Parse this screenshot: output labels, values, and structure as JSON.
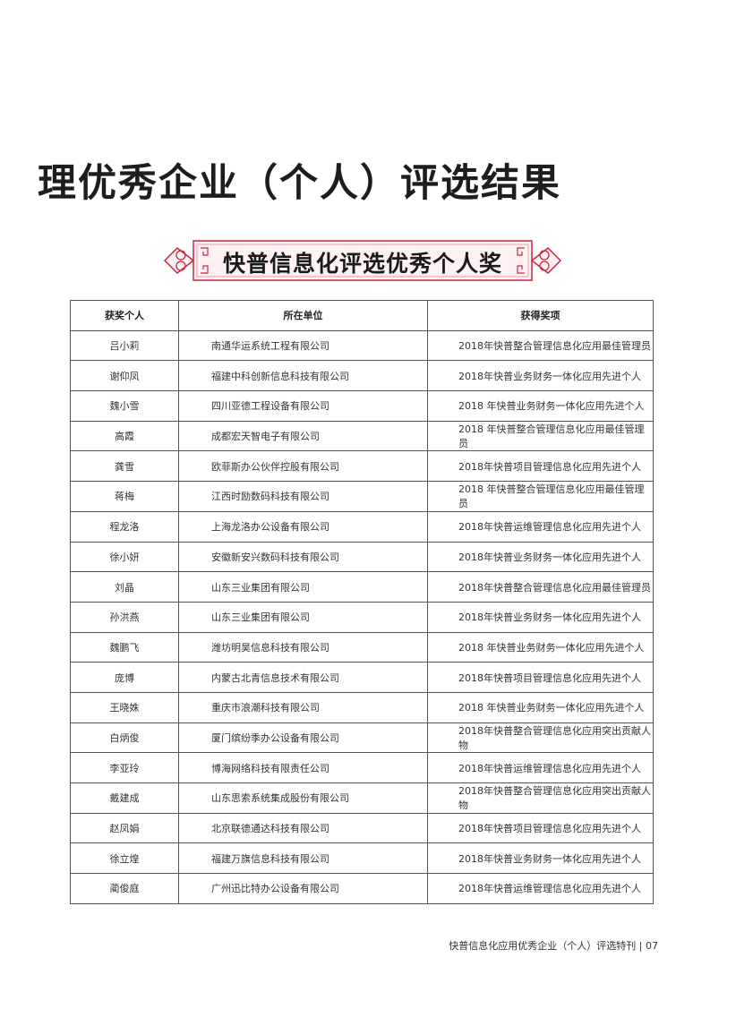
{
  "title": "理优秀企业（个人）评选结果",
  "banner": "快普信息化评选优秀个人奖",
  "colors": {
    "banner_frame": "#c8283a",
    "banner_fill": "#fdf1f3"
  },
  "table": {
    "headers": [
      "获奖个人",
      "所在单位",
      "获得奖项"
    ],
    "rows": [
      [
        "吕小莉",
        "南通华运系统工程有限公司",
        "2018年快普整合管理信息化应用最佳管理员"
      ],
      [
        "谢仰凤",
        "福建中科创新信息科技有限公司",
        "2018年快普业务财务一体化应用先进个人"
      ],
      [
        "魏小雪",
        "四川亚德工程设备有限公司",
        "2018 年快普业务财务一体化应用先进个人"
      ],
      [
        "高霞",
        "成都宏天智电子有限公司",
        "2018 年快普整合管理信息化应用最佳管理员"
      ],
      [
        "龚雪",
        "欧菲斯办公伙伴控股有限公司",
        "2018年快普项目管理信息化应用先进个人"
      ],
      [
        "蒋梅",
        "江西时励数码科技有限公司",
        "2018 年快普整合管理信息化应用最佳管理员"
      ],
      [
        "程龙洛",
        "上海龙洛办公设备有限公司",
        "2018年快普运维管理信息化应用先进个人"
      ],
      [
        "徐小妍",
        "安徽新安兴数码科技有限公司",
        "2018年快普业务财务一体化应用先进个人"
      ],
      [
        "刘晶",
        "山东三业集团有限公司",
        "2018年快普整合管理信息化应用最佳管理员"
      ],
      [
        "孙洪燕",
        "山东三业集团有限公司",
        "2018年快普业务财务一体化应用先进个人"
      ],
      [
        "魏鹏飞",
        "潍坊明昊信息科技有限公司",
        "2018 年快普业务财务一体化应用先进个人"
      ],
      [
        "庞博",
        "内蒙古北青信息技术有限公司",
        "2018年快普项目管理信息化应用先进个人"
      ],
      [
        "王晓姝",
        "重庆市浪潮科技有限公司",
        "2018 年快普业务财务一体化应用先进个人"
      ],
      [
        "白炳俊",
        "厦门缤纷季办公设备有限公司",
        "2018年快普整合管理信息化应用突出贡献人物"
      ],
      [
        "李亚玲",
        "博海网络科技有限责任公司",
        "2018年快普运维管理信息化应用先进个人"
      ],
      [
        "戴建成",
        "山东思索系统集成股份有限公司",
        "2018年快普整合管理信息化应用突出贡献人物"
      ],
      [
        "赵凤娟",
        "北京联德通达科技有限公司",
        "2018年快普项目管理信息化应用先进个人"
      ],
      [
        "徐立煌",
        "福建万旗信息科技有限公司",
        "2018年快普业务财务一体化应用先进个人"
      ],
      [
        "蔺俊庭",
        "广州迅比特办公设备有限公司",
        "2018年快普运维管理信息化应用先进个人"
      ]
    ]
  },
  "footer": "快普信息化应用优秀企业（个人）评选特刊 | 07"
}
